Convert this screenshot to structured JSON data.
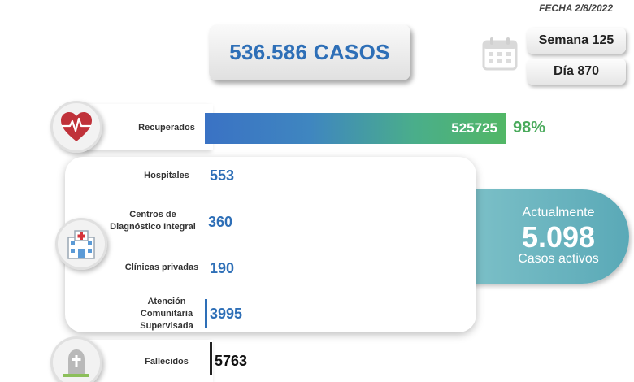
{
  "header": {
    "date": "FECHA 2/8/2022",
    "total_cases": "536.586 CASOS",
    "week": "Semana 125",
    "day": "Día 870"
  },
  "recovered": {
    "label": "Recuperados",
    "value": "525725",
    "percent": "98%"
  },
  "facilities": [
    {
      "label": "Hospitales",
      "value": "553"
    },
    {
      "label": "Centros de Diagnóstico Integral",
      "value": "360"
    },
    {
      "label": "Clínicas privadas",
      "value": "190"
    },
    {
      "label": "Atención Comunitaria Supervisada",
      "value": "3995"
    }
  ],
  "active": {
    "line1": "Actualmente",
    "number": "5.098",
    "line2": "Casos activos"
  },
  "deaths": {
    "label": "Fallecidos",
    "value": "5763"
  },
  "colors": {
    "accent_blue": "#2e6fb7",
    "green": "#4aaa5c",
    "teal": "#5aa9b7"
  },
  "icons": {
    "calendar": "calendar-icon",
    "heart": "heart-pulse-icon",
    "hospital": "hospital-icon",
    "tombstone": "tombstone-icon"
  }
}
